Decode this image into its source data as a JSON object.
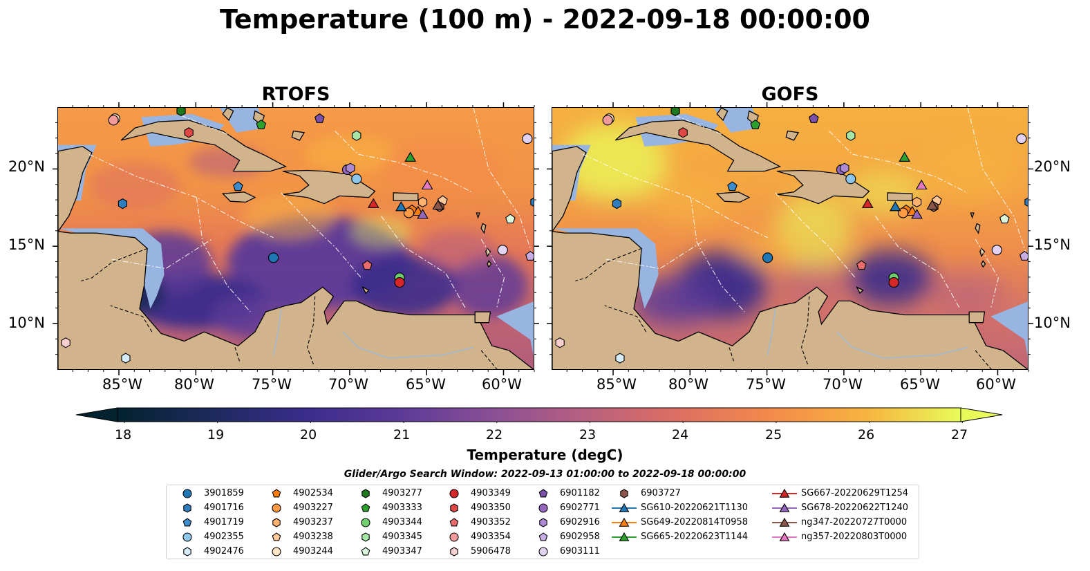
{
  "title": "Temperature (100 m) - 2022-09-18 00:00:00",
  "panels": [
    {
      "title": "RTOFS",
      "variant": "rtofs"
    },
    {
      "title": "GOFS",
      "variant": "gofs"
    }
  ],
  "lon_ticks": [
    "85°W",
    "80°W",
    "75°W",
    "70°W",
    "65°W",
    "60°W"
  ],
  "lat_ticks": [
    "20°N",
    "15°N",
    "10°N"
  ],
  "extent": {
    "lon_min": -89,
    "lon_max": -58,
    "lat_min": 7,
    "lat_max": 24
  },
  "colorbar": {
    "label": "Temperature (degC)",
    "ticks": [
      "18",
      "19",
      "20",
      "21",
      "22",
      "23",
      "24",
      "25",
      "26",
      "27"
    ],
    "vmin": 18,
    "vmax": 27,
    "extend": "both",
    "colormap": [
      "#03222f",
      "#1d2a5c",
      "#3a2c8c",
      "#5b3a98",
      "#8a4f96",
      "#b8607f",
      "#de6f62",
      "#f48b4a",
      "#f7b43f",
      "#e8fb5a"
    ]
  },
  "search_window": "Glider/Argo Search Window: 2022-09-13 01:00:00 to 2022-09-18 00:00:00",
  "land_color": "#d2b48c",
  "shelf_color": "#98b4e0",
  "legend": {
    "columns": [
      [
        {
          "label": "3901859",
          "marker": "circle",
          "color": "#1f77b4"
        },
        {
          "label": "4901716",
          "marker": "hexagon",
          "color": "#2f7fc0"
        },
        {
          "label": "4901719",
          "marker": "pentagon",
          "color": "#3d8ccd"
        },
        {
          "label": "4902355",
          "marker": "circle",
          "color": "#8ec5ea"
        },
        {
          "label": "4902476",
          "marker": "hexagon",
          "color": "#d6ecf9"
        }
      ],
      [
        {
          "label": "4902534",
          "marker": "pentagon",
          "color": "#ff7f0e"
        },
        {
          "label": "4903227",
          "marker": "circle",
          "color": "#ff9a45"
        },
        {
          "label": "4903237",
          "marker": "hexagon",
          "color": "#ffb26e"
        },
        {
          "label": "4903238",
          "marker": "pentagon",
          "color": "#ffc99a"
        },
        {
          "label": "4903244",
          "marker": "circle",
          "color": "#ffe2c4"
        }
      ],
      [
        {
          "label": "4903277",
          "marker": "hexagon",
          "color": "#1f7a1f"
        },
        {
          "label": "4903333",
          "marker": "pentagon",
          "color": "#2ca02c"
        },
        {
          "label": "4903344",
          "marker": "circle",
          "color": "#6fcf6f"
        },
        {
          "label": "4903345",
          "marker": "hexagon",
          "color": "#a6e6a6"
        },
        {
          "label": "4903347",
          "marker": "pentagon",
          "color": "#dcf8dc"
        }
      ],
      [
        {
          "label": "4903349",
          "marker": "circle",
          "color": "#d62728"
        },
        {
          "label": "4903350",
          "marker": "hexagon",
          "color": "#e04848"
        },
        {
          "label": "4903352",
          "marker": "pentagon",
          "color": "#ea6b6b"
        },
        {
          "label": "4903354",
          "marker": "circle",
          "color": "#f39a9a"
        },
        {
          "label": "5906478",
          "marker": "hexagon",
          "color": "#fbd0d0"
        }
      ],
      [
        {
          "label": "6901182",
          "marker": "pentagon",
          "color": "#7b52ab"
        },
        {
          "label": "6902771",
          "marker": "circle",
          "color": "#9467bd"
        },
        {
          "label": "6902916",
          "marker": "hexagon",
          "color": "#ae8ad3"
        },
        {
          "label": "6902958",
          "marker": "pentagon",
          "color": "#c9aee6"
        },
        {
          "label": "6903111",
          "marker": "circle",
          "color": "#e2d2f4"
        }
      ],
      [
        {
          "label": "6903727",
          "marker": "hexagon",
          "color": "#8c564b"
        },
        {
          "label": "SG610-20220621T1130",
          "marker": "triangle",
          "color": "#1f77b4",
          "line": true
        },
        {
          "label": "SG649-20220814T0958",
          "marker": "triangle",
          "color": "#ff7f0e",
          "line": true
        },
        {
          "label": "SG665-20220623T1144",
          "marker": "triangle",
          "color": "#2ca02c",
          "line": true
        }
      ],
      [
        {
          "label": "SG667-20220629T1254",
          "marker": "triangle",
          "color": "#d62728",
          "line": true
        },
        {
          "label": "SG678-20220622T1240",
          "marker": "triangle",
          "color": "#9467bd",
          "line": true
        },
        {
          "label": "ng347-20220727T0000",
          "marker": "triangle",
          "color": "#8c564b",
          "line": true
        },
        {
          "label": "ng357-20220803T0000",
          "marker": "triangle",
          "color": "#e377c2",
          "line": true
        }
      ]
    ]
  },
  "observations": [
    {
      "id": "3901859",
      "lon": -75.0,
      "lat": 14.3
    },
    {
      "id": "4901716",
      "lon": -84.8,
      "lat": 17.8
    },
    {
      "id": "4901719",
      "lon": -77.3,
      "lat": 18.9
    },
    {
      "id": "4902355",
      "lon": -69.6,
      "lat": 19.4
    },
    {
      "id": "4902476",
      "lon": -84.6,
      "lat": 7.8
    },
    {
      "id": "4902534",
      "lon": -66.0,
      "lat": 17.4
    },
    {
      "id": "4903227",
      "lon": -66.2,
      "lat": 17.2
    },
    {
      "id": "4903237",
      "lon": -65.3,
      "lat": 17.9
    },
    {
      "id": "4903238",
      "lon": -64.0,
      "lat": 18.0
    },
    {
      "id": "4903244",
      "lon": -85.3,
      "lat": 23.3
    },
    {
      "id": "4903277",
      "lon": -81.0,
      "lat": 23.8
    },
    {
      "id": "4903333",
      "lon": -75.8,
      "lat": 22.9
    },
    {
      "id": "4903344",
      "lon": -66.8,
      "lat": 13.0
    },
    {
      "id": "4903345",
      "lon": -69.6,
      "lat": 22.2
    },
    {
      "id": "4903347",
      "lon": -59.6,
      "lat": 16.8
    },
    {
      "id": "4903349",
      "lon": -66.8,
      "lat": 12.7
    },
    {
      "id": "4903350",
      "lon": -80.5,
      "lat": 22.4
    },
    {
      "id": "4903352",
      "lon": -68.9,
      "lat": 13.8
    },
    {
      "id": "4903354",
      "lon": -85.4,
      "lat": 23.2
    },
    {
      "id": "5906478",
      "lon": -88.5,
      "lat": 8.8
    },
    {
      "id": "6901182",
      "lon": -72.0,
      "lat": 23.3
    },
    {
      "id": "6902771",
      "lon": -70.2,
      "lat": 20.0
    },
    {
      "id": "6902916",
      "lon": -70.0,
      "lat": 20.1
    },
    {
      "id": "6902958",
      "lon": -58.3,
      "lat": 14.4
    },
    {
      "id": "6903111",
      "lon": -60.1,
      "lat": 14.8
    },
    {
      "id": "6903111-b",
      "lon": -58.5,
      "lat": 22.0
    },
    {
      "id": "6903727",
      "lon": -64.2,
      "lat": 17.6
    },
    {
      "id": "4901716-b",
      "lon": -58.0,
      "lat": 17.9
    },
    {
      "id": "SG610-20220621T1130",
      "lon": -66.7,
      "lat": 17.6
    },
    {
      "id": "SG649-20220814T0958",
      "lon": -65.6,
      "lat": 17.3
    },
    {
      "id": "SG665-20220623T1144",
      "lon": -66.1,
      "lat": 20.8
    },
    {
      "id": "SG667-20220629T1254",
      "lon": -68.5,
      "lat": 17.8
    },
    {
      "id": "SG678-20220622T1240",
      "lon": -65.3,
      "lat": 17.1
    },
    {
      "id": "ng347-20220727T0000",
      "lon": -64.3,
      "lat": 17.7
    },
    {
      "id": "ng357-20220803T0000",
      "lon": -65.0,
      "lat": 19.0
    }
  ]
}
